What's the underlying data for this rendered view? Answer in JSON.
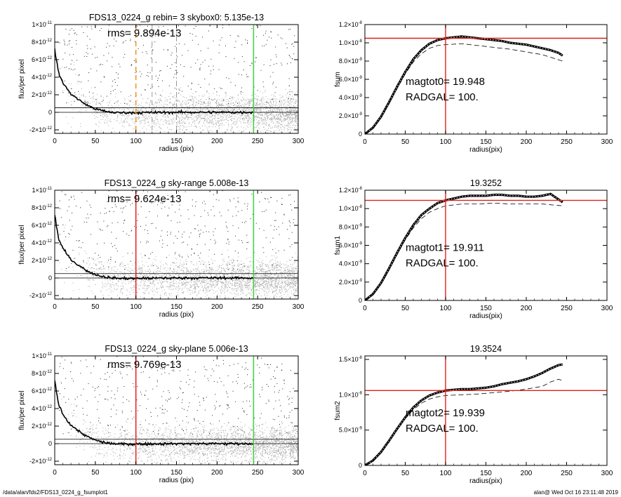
{
  "footer": {
    "path": "/data/alan/fds2/FDS13_0224_g_fsumplot1",
    "stamp": "alan@  Wed Oct 16 23:11:48 2019"
  },
  "colors": {
    "red": "#e0201b",
    "green": "#3ed23e",
    "orange": "#f0921a",
    "scatter": "#a9a9a9",
    "profile": "#000000"
  },
  "chart_data": [
    {
      "type": "scatter",
      "title": "FDS13_0224_g rebin= 3    skybox0:  5.135e-13",
      "annotation": "rms= 9.894e-13",
      "xlabel": "radius (pix)",
      "ylabel": "flux/per pixel",
      "xlim": [
        0,
        300
      ],
      "ylim": [
        -2.4e-12,
        1e-11
      ],
      "xticks": [
        0,
        50,
        100,
        150,
        200,
        250,
        300
      ],
      "yticks": [
        {
          "v": -2e-12,
          "m": "-2",
          "e": "-12"
        },
        {
          "v": 0,
          "m": "0",
          "e": ""
        },
        {
          "v": 2e-12,
          "m": "2",
          "e": "-12"
        },
        {
          "v": 4e-12,
          "m": "4",
          "e": "-12"
        },
        {
          "v": 6e-12,
          "m": "6",
          "e": "-12"
        },
        {
          "v": 8e-12,
          "m": "8",
          "e": "-12"
        },
        {
          "v": 1e-11,
          "m": "1",
          "e": "-11"
        }
      ],
      "profile": {
        "x": [
          0,
          2,
          5,
          10,
          15,
          20,
          30,
          40,
          50,
          60,
          70,
          80,
          100,
          150,
          200,
          245
        ],
        "y": [
          7.2e-12,
          6e-12,
          4.4e-12,
          3.4e-12,
          2.7e-12,
          2.1e-12,
          1.4e-12,
          8e-13,
          4e-13,
          1.5e-13,
          0,
          -5e-14,
          -5e-14,
          0,
          0,
          0
        ]
      },
      "hlines": [
        5.135e-13,
        0
      ],
      "vlines": [
        {
          "x": 100,
          "color": "orange",
          "style": "dash"
        },
        {
          "x": 120,
          "color": "gray",
          "style": "dash"
        },
        {
          "x": 150,
          "color": "gray",
          "style": "dashdot"
        },
        {
          "x": 245,
          "color": "green",
          "style": "solid"
        }
      ]
    },
    {
      "type": "line",
      "title": "",
      "annotations": [
        "magtot0=  19.948",
        "RADGAL=    100."
      ],
      "xlabel": "radius(pix)",
      "ylabel": "fsum",
      "xlim": [
        0,
        300
      ],
      "ylim": [
        0,
        1.2e-08
      ],
      "xticks": [
        0,
        50,
        100,
        150,
        200,
        250,
        300
      ],
      "yticks": [
        {
          "v": 0,
          "m": "0",
          "e": ""
        },
        {
          "v": 2e-09,
          "m": "2.0×10",
          "e": "-9"
        },
        {
          "v": 4e-09,
          "m": "4.0×10",
          "e": "-9"
        },
        {
          "v": 6e-09,
          "m": "6.0×10",
          "e": "-9"
        },
        {
          "v": 8e-09,
          "m": "8.0×10",
          "e": "-9"
        },
        {
          "v": 1e-08,
          "m": "1.0×10",
          "e": "-8"
        },
        {
          "v": 1.2e-08,
          "m": "1.2×10",
          "e": "-8"
        }
      ],
      "series": [
        {
          "x": [
            0,
            10,
            20,
            30,
            40,
            50,
            60,
            70,
            80,
            90,
            100,
            110,
            120,
            130,
            140,
            150,
            160,
            170,
            180,
            190,
            200,
            210,
            220,
            230,
            240,
            245
          ],
          "y": [
            0,
            7e-10,
            1.9e-09,
            3.5e-09,
            5.2e-09,
            6.8e-09,
            8.2e-09,
            9.2e-09,
            9.9e-09,
            1.03e-08,
            1.05e-08,
            1.06e-08,
            1.07e-08,
            1.06e-08,
            1.05e-08,
            1.04e-08,
            1.03e-08,
            1.02e-08,
            1e-08,
            9.9e-09,
            9.8e-09,
            9.6e-09,
            9.4e-09,
            9.2e-09,
            8.9e-09,
            8.6e-09
          ]
        },
        {
          "x": [
            0,
            10,
            20,
            30,
            40,
            50,
            60,
            70,
            80,
            90,
            100,
            120,
            140,
            160,
            180,
            200,
            220,
            245
          ],
          "y": [
            0,
            6.5e-10,
            1.8e-09,
            3.4e-09,
            5e-09,
            6.6e-09,
            7.9e-09,
            8.8e-09,
            9.4e-09,
            9.7e-09,
            9.8e-09,
            9.9e-09,
            9.7e-09,
            9.5e-09,
            9.3e-09,
            9e-09,
            8.7e-09,
            8e-09
          ]
        }
      ],
      "hline": 1.05e-08,
      "vline": 100
    },
    {
      "type": "scatter",
      "title": "FDS13_0224_g sky-range  5.008e-13",
      "annotation": "rms= 9.624e-13",
      "xlabel": "radius (pix)",
      "ylabel": "flux/per pixel",
      "xlim": [
        0,
        300
      ],
      "ylim": [
        -2.4e-12,
        1e-11
      ],
      "xticks": [
        0,
        50,
        100,
        150,
        200,
        250,
        300
      ],
      "yticks": [
        {
          "v": -2e-12,
          "m": "-2",
          "e": "-12"
        },
        {
          "v": 0,
          "m": "0",
          "e": ""
        },
        {
          "v": 2e-12,
          "m": "2",
          "e": "-12"
        },
        {
          "v": 4e-12,
          "m": "4",
          "e": "-12"
        },
        {
          "v": 6e-12,
          "m": "6",
          "e": "-12"
        },
        {
          "v": 8e-12,
          "m": "8",
          "e": "-12"
        },
        {
          "v": 1e-11,
          "m": "1",
          "e": "-11"
        }
      ],
      "profile": {
        "x": [
          0,
          2,
          5,
          10,
          15,
          20,
          30,
          40,
          50,
          60,
          70,
          80,
          100,
          150,
          200,
          245
        ],
        "y": [
          7.2e-12,
          6e-12,
          4.4e-12,
          3.4e-12,
          2.7e-12,
          2.1e-12,
          1.4e-12,
          8e-13,
          4e-13,
          1.5e-13,
          0,
          -5e-14,
          -5e-14,
          0,
          0,
          0
        ]
      },
      "hlines": [
        5.008e-13,
        0
      ],
      "vlines": [
        {
          "x": 100,
          "color": "red",
          "style": "solid"
        },
        {
          "x": 245,
          "color": "green",
          "style": "solid"
        }
      ]
    },
    {
      "type": "line",
      "title": "19.3252",
      "annotations": [
        "magtot1=  19.911",
        "RADGAL=    100."
      ],
      "xlabel": "radius(pix)",
      "ylabel": "fsum1",
      "xlim": [
        0,
        300
      ],
      "ylim": [
        0,
        1.2e-08
      ],
      "xticks": [
        0,
        50,
        100,
        150,
        200,
        250,
        300
      ],
      "yticks": [
        {
          "v": 0,
          "m": "0",
          "e": ""
        },
        {
          "v": 2e-09,
          "m": "2.0×10",
          "e": "-9"
        },
        {
          "v": 4e-09,
          "m": "4.0×10",
          "e": "-9"
        },
        {
          "v": 6e-09,
          "m": "6.0×10",
          "e": "-9"
        },
        {
          "v": 8e-09,
          "m": "8.0×10",
          "e": "-9"
        },
        {
          "v": 1e-08,
          "m": "1.0×10",
          "e": "-8"
        },
        {
          "v": 1.2e-08,
          "m": "1.2×10",
          "e": "-8"
        }
      ],
      "series": [
        {
          "x": [
            0,
            10,
            20,
            30,
            40,
            50,
            60,
            70,
            80,
            90,
            100,
            110,
            120,
            130,
            140,
            150,
            160,
            170,
            180,
            190,
            200,
            210,
            220,
            230,
            240,
            245
          ],
          "y": [
            0,
            7e-10,
            1.9e-09,
            3.5e-09,
            5.2e-09,
            6.8e-09,
            8.2e-09,
            9.3e-09,
            1e-08,
            1.06e-08,
            1.09e-08,
            1.11e-08,
            1.13e-08,
            1.14e-08,
            1.14e-08,
            1.14e-08,
            1.15e-08,
            1.15e-08,
            1.14e-08,
            1.14e-08,
            1.13e-08,
            1.13e-08,
            1.14e-08,
            1.16e-08,
            1.1e-08,
            1.07e-08
          ]
        },
        {
          "x": [
            0,
            10,
            20,
            30,
            40,
            50,
            60,
            70,
            80,
            90,
            100,
            120,
            140,
            160,
            180,
            200,
            220,
            245
          ],
          "y": [
            0,
            6.5e-10,
            1.8e-09,
            3.4e-09,
            5e-09,
            6.6e-09,
            7.9e-09,
            8.9e-09,
            9.6e-09,
            1e-08,
            1.03e-08,
            1.05e-08,
            1.05e-08,
            1.06e-08,
            1.05e-08,
            1.05e-08,
            1.05e-08,
            1.03e-08
          ]
        }
      ],
      "hline": 1.09e-08,
      "vline": 100
    },
    {
      "type": "scatter",
      "title": "FDS13_0224_g sky-plane  5.006e-13",
      "annotation": "rms= 9.769e-13",
      "xlabel": "radius (pix)",
      "ylabel": "flux/per pixel",
      "xlim": [
        0,
        300
      ],
      "ylim": [
        -2.4e-12,
        1e-11
      ],
      "xticks": [
        0,
        50,
        100,
        150,
        200,
        250,
        300
      ],
      "yticks": [
        {
          "v": -2e-12,
          "m": "-2",
          "e": "-12"
        },
        {
          "v": 0,
          "m": "0",
          "e": ""
        },
        {
          "v": 2e-12,
          "m": "2",
          "e": "-12"
        },
        {
          "v": 4e-12,
          "m": "4",
          "e": "-12"
        },
        {
          "v": 6e-12,
          "m": "6",
          "e": "-12"
        },
        {
          "v": 8e-12,
          "m": "8",
          "e": "-12"
        },
        {
          "v": 1e-11,
          "m": "1",
          "e": "-11"
        }
      ],
      "profile": {
        "x": [
          0,
          2,
          5,
          10,
          15,
          20,
          30,
          40,
          50,
          60,
          70,
          80,
          100,
          150,
          200,
          245
        ],
        "y": [
          7.2e-12,
          6e-12,
          4.4e-12,
          3.4e-12,
          2.7e-12,
          2.1e-12,
          1.4e-12,
          8e-13,
          4e-13,
          1.5e-13,
          0,
          -5e-14,
          -5e-14,
          0,
          0,
          0
        ]
      },
      "hlines": [
        5.006e-13,
        0
      ],
      "vlines": [
        {
          "x": 100,
          "color": "red",
          "style": "solid"
        },
        {
          "x": 245,
          "color": "green",
          "style": "solid"
        }
      ]
    },
    {
      "type": "line",
      "title": "19.3524",
      "annotations": [
        "magtot2=  19.939",
        "RADGAL=    100."
      ],
      "xlabel": "radius(pix)",
      "ylabel": "fsum2",
      "xlim": [
        0,
        300
      ],
      "ylim": [
        0,
        1.55e-08
      ],
      "xticks": [
        0,
        50,
        100,
        150,
        200,
        250,
        300
      ],
      "yticks": [
        {
          "v": 0,
          "m": "0",
          "e": ""
        },
        {
          "v": 5e-09,
          "m": "5.0×10",
          "e": "-9"
        },
        {
          "v": 1e-08,
          "m": "1.0×10",
          "e": "-8"
        },
        {
          "v": 1.5e-08,
          "m": "1.5×10",
          "e": "-8"
        }
      ],
      "series": [
        {
          "x": [
            0,
            10,
            20,
            30,
            40,
            50,
            60,
            70,
            80,
            90,
            100,
            110,
            120,
            130,
            140,
            150,
            160,
            170,
            180,
            190,
            200,
            210,
            220,
            230,
            240,
            245
          ],
          "y": [
            0,
            7e-10,
            1.9e-09,
            3.5e-09,
            5.2e-09,
            6.8e-09,
            8.2e-09,
            9.2e-09,
            9.9e-09,
            1.03e-08,
            1.06e-08,
            1.07e-08,
            1.08e-08,
            1.08e-08,
            1.09e-08,
            1.1e-08,
            1.12e-08,
            1.15e-08,
            1.17e-08,
            1.19e-08,
            1.22e-08,
            1.26e-08,
            1.31e-08,
            1.37e-08,
            1.42e-08,
            1.43e-08
          ]
        },
        {
          "x": [
            0,
            10,
            20,
            30,
            40,
            50,
            60,
            70,
            80,
            90,
            100,
            120,
            140,
            160,
            180,
            200,
            220,
            230,
            240,
            245
          ],
          "y": [
            0,
            6.5e-10,
            1.8e-09,
            3.4e-09,
            5e-09,
            6.6e-09,
            7.9e-09,
            8.8e-09,
            9.4e-09,
            9.7e-09,
            9.9e-09,
            1e-08,
            1.01e-08,
            1.03e-08,
            1.05e-08,
            1.08e-08,
            1.12e-08,
            1.18e-08,
            1.22e-08,
            1.2e-08
          ]
        }
      ],
      "hline": 1.06e-08,
      "vline": 100
    }
  ]
}
